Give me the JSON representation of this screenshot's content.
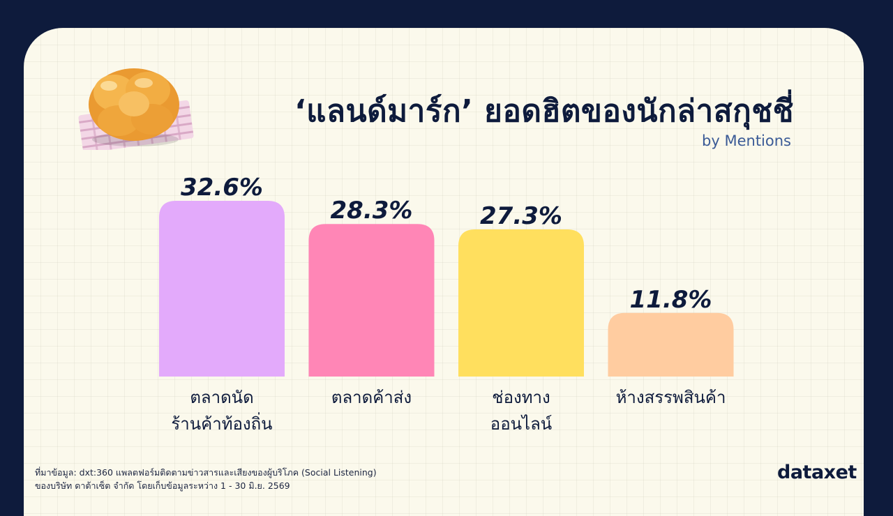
{
  "header": {
    "title": "‘แลนด์มาร์ก’ ยอดฮิตของนักล่าสกุชชี่",
    "subtitle": "by Mentions"
  },
  "chart_data": {
    "type": "bar",
    "categories": [
      [
        "ตลาดนัด",
        "ร้านค้าท้องถิ่น"
      ],
      [
        "ตลาดค้าส่ง"
      ],
      [
        "ช่องทาง",
        "ออนไลน์"
      ],
      [
        "ห้างสรรพสินค้า"
      ]
    ],
    "values": [
      32.6,
      28.3,
      27.3,
      11.8
    ],
    "value_labels": [
      "32.6%",
      "28.3%",
      "27.3%",
      "11.8%"
    ],
    "colors": [
      "#e3aafb",
      "#ff86b6",
      "#ffdf5e",
      "#ffcca0"
    ],
    "ylim": [
      0,
      32.6
    ],
    "grid": false,
    "legend": "none"
  },
  "footer": {
    "line1": "ที่มาข้อมูล: dxt:360 แพลตฟอร์มติดตามข่าวสารและเสียงของผู้บริโภค (Social Listening)",
    "line2": "ของบริษัท ดาต้าเซ็ต จำกัด โดยเก็บข้อมูลระหว่าง 1 - 30 มิ.ย. 2569"
  },
  "brand": {
    "logo_text": "dataxet"
  }
}
